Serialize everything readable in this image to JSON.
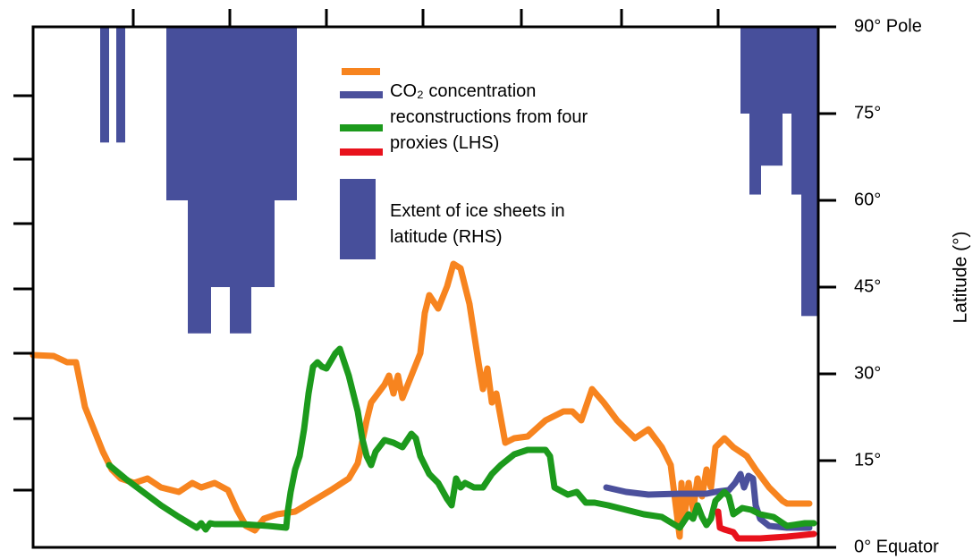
{
  "chart_data": {
    "type": "line",
    "xlim": [
      0,
      878
    ],
    "xticks": [
      112,
      220,
      328,
      436,
      546,
      658,
      766
    ],
    "ylim": [
      0,
      582
    ],
    "yticks": [
      64,
      144,
      217,
      289,
      362,
      434,
      505
    ],
    "y2lim": [
      0,
      90
    ],
    "y2ticks": [
      {
        "value": 0,
        "label": "0° Equator"
      },
      {
        "value": 15,
        "label": "15°"
      },
      {
        "value": 30,
        "label": "30°"
      },
      {
        "value": 45,
        "label": "45°"
      },
      {
        "value": 60,
        "label": "60°"
      },
      {
        "value": 75,
        "label": "75°"
      },
      {
        "value": 90,
        "label": "90° Pole"
      }
    ],
    "y2label": "Latitude (°)",
    "co2_legend": "CO₂ concentration reconstructions from four proxies (LHS)",
    "ice_legend": "Extent of ice sheets in latitude (RHS)",
    "series": [
      {
        "color": "#f7841f",
        "x": [
          0,
          23,
          38,
          48,
          53,
          58,
          68,
          78,
          88,
          98,
          113,
          128,
          143,
          163,
          178,
          188,
          203,
          218,
          228,
          238,
          248,
          258,
          273,
          293,
          313,
          333,
          353,
          363,
          373,
          378,
          393,
          398,
          403,
          408,
          413,
          423,
          433,
          438,
          443,
          453,
          463,
          470,
          478,
          488,
          498,
          503,
          508,
          513,
          518,
          528,
          538,
          553,
          573,
          593,
          603,
          613,
          625,
          638,
          653,
          673,
          688,
          703,
          713,
          718,
          723,
          725,
          728,
          733,
          738,
          743,
          748,
          753,
          758,
          763,
          773,
          783,
          798,
          808,
          823,
          838,
          843,
          868
        ],
        "values": [
          215,
          214,
          207,
          207,
          182,
          157,
          132,
          107,
          87,
          77,
          72,
          77,
          67,
          62,
          72,
          67,
          72,
          64,
          42,
          24,
          19,
          32,
          37,
          40,
          52,
          64,
          77,
          94,
          142,
          162,
          182,
          192,
          172,
          192,
          167,
          192,
          217,
          262,
          282,
          267,
          292,
          317,
          312,
          272,
          207,
          177,
          200,
          162,
          172,
          117,
          122,
          124,
          142,
          152,
          152,
          142,
          177,
          162,
          142,
          122,
          132,
          112,
          92,
          52,
          12,
          72,
          32,
          72,
          42,
          77,
          57,
          87,
          67,
          112,
          122,
          112,
          102,
          87,
          67,
          52,
          49,
          49
        ]
      },
      {
        "color": "#4b509c",
        "x": [
          641,
          663,
          688,
          723,
          753,
          763,
          778,
          785,
          791,
          795,
          800,
          805,
          808,
          813,
          823,
          843,
          868
        ],
        "values": [
          67,
          62,
          59,
          60,
          60,
          62,
          64,
          72,
          82,
          67,
          80,
          77,
          47,
          32,
          24,
          22,
          22
        ]
      },
      {
        "color": "#1c9a1c",
        "x": [
          85,
          103,
          123,
          143,
          163,
          183,
          188,
          193,
          198,
          203,
          233,
          263,
          283,
          285,
          288,
          293,
          298,
          303,
          308,
          313,
          318,
          323,
          328,
          338,
          343,
          353,
          363,
          368,
          373,
          378,
          383,
          393,
          403,
          413,
          423,
          428,
          433,
          443,
          453,
          463,
          468,
          473,
          478,
          483,
          493,
          503,
          513,
          523,
          538,
          553,
          573,
          578,
          583,
          598,
          608,
          618,
          628,
          643,
          663,
          683,
          703,
          723,
          733,
          738,
          743,
          748,
          753,
          758,
          763,
          773,
          778,
          783,
          793,
          803,
          813,
          828,
          843,
          863,
          873
        ],
        "values": [
          92,
          77,
          62,
          47,
          34,
          22,
          27,
          20,
          27,
          26,
          26,
          24,
          22,
          42,
          62,
          87,
          102,
          132,
          172,
          202,
          207,
          202,
          200,
          217,
          222,
          192,
          152,
          122,
          102,
          92,
          107,
          120,
          117,
          112,
          127,
          122,
          102,
          82,
          72,
          54,
          47,
          77,
          67,
          72,
          67,
          67,
          82,
          92,
          104,
          109,
          109,
          102,
          67,
          59,
          62,
          50,
          50,
          47,
          42,
          37,
          34,
          22,
          37,
          32,
          47,
          34,
          25,
          32,
          52,
          62,
          57,
          37,
          44,
          42,
          37,
          34,
          24,
          27,
          27
        ]
      },
      {
        "color": "#e8121c",
        "x": [
          766,
          768,
          773,
          783,
          788,
          813,
          843,
          873
        ],
        "values": [
          40,
          22,
          20,
          17,
          10,
          10,
          12,
          15
        ]
      }
    ],
    "ice": {
      "color": "#474f9b",
      "axis": "y2",
      "x_start": [
        75,
        93,
        149,
        173,
        199,
        220,
        244,
        270,
        791,
        801,
        814,
        838,
        848,
        859
      ],
      "x_end": [
        85,
        103,
        173,
        199,
        220,
        244,
        270,
        295,
        801,
        814,
        838,
        848,
        859,
        878
      ],
      "values": [
        70,
        70,
        60,
        37,
        45,
        37,
        45,
        60,
        75,
        61,
        66,
        75,
        61,
        40
      ]
    }
  }
}
